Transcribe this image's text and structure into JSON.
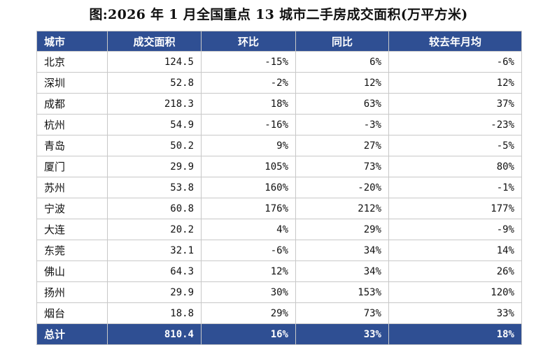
{
  "chart_data": {
    "type": "table",
    "title": "图:2026 年 1 月全国重点 13 城市二手房成交面积(万平方米)",
    "columns": [
      "城市",
      "成交面积",
      "环比",
      "同比",
      "较去年月均"
    ],
    "rows": [
      [
        "北京",
        "124.5",
        "-15%",
        "6%",
        "-6%"
      ],
      [
        "深圳",
        "52.8",
        "-2%",
        "12%",
        "12%"
      ],
      [
        "成都",
        "218.3",
        "18%",
        "63%",
        "37%"
      ],
      [
        "杭州",
        "54.9",
        "-16%",
        "-3%",
        "-23%"
      ],
      [
        "青岛",
        "50.2",
        "9%",
        "27%",
        "-5%"
      ],
      [
        "厦门",
        "29.9",
        "105%",
        "73%",
        "80%"
      ],
      [
        "苏州",
        "53.8",
        "160%",
        "-20%",
        "-1%"
      ],
      [
        "宁波",
        "60.8",
        "176%",
        "212%",
        "177%"
      ],
      [
        "大连",
        "20.2",
        "4%",
        "29%",
        "-9%"
      ],
      [
        "东莞",
        "32.1",
        "-6%",
        "34%",
        "14%"
      ],
      [
        "佛山",
        "64.3",
        "12%",
        "34%",
        "26%"
      ],
      [
        "扬州",
        "29.9",
        "30%",
        "153%",
        "120%"
      ],
      [
        "烟台",
        "18.8",
        "29%",
        "73%",
        "33%"
      ]
    ],
    "total": [
      "总计",
      "810.4",
      "16%",
      "33%",
      "18%"
    ]
  },
  "colors": {
    "header_bg": "#2f4f93",
    "header_text": "#ffffff",
    "grid_line": "#c8c8c8"
  }
}
